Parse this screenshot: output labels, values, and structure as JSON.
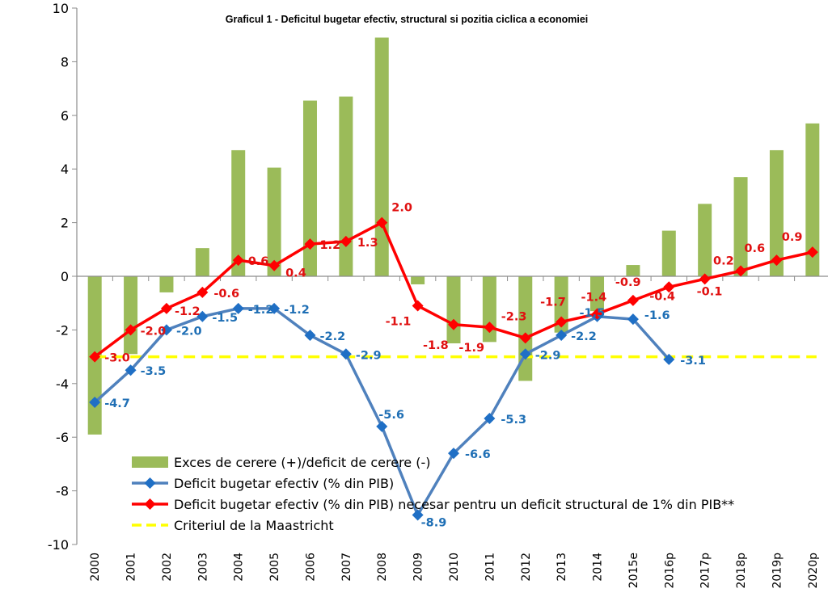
{
  "chart_data": {
    "type": "bar",
    "title": "Graficul 1 - Deficitul bugetar efectiv, structural si pozitia ciclica a economiei",
    "xlabel": "",
    "ylabel": "",
    "ylim": [
      -10,
      10
    ],
    "yticks": [
      10,
      8,
      6,
      4,
      2,
      0,
      -2,
      -4,
      -6,
      -8,
      -10
    ],
    "grid": false,
    "legend_position": "bottom-left",
    "categories": [
      "2000",
      "2001",
      "2002",
      "2003",
      "2004",
      "2005",
      "2006",
      "2007",
      "2008",
      "2009",
      "2010",
      "2011",
      "2012",
      "2013",
      "2014",
      "2015e",
      "2016p",
      "2017p",
      "2018p",
      "2019p",
      "2020p"
    ],
    "series": [
      {
        "name": "Exces de cerere (+)/deficit de cerere (-)",
        "kind": "bar",
        "color": "#9BBB59",
        "values": [
          -5.9,
          -2.9,
          -0.6,
          1.05,
          4.7,
          4.05,
          6.55,
          6.7,
          8.9,
          -0.3,
          -2.5,
          -2.45,
          -3.9,
          -2.1,
          -1.3,
          0.42,
          1.7,
          2.7,
          3.7,
          4.7,
          5.7
        ]
      },
      {
        "name": "Deficit bugetar efectiv (% din PIB)",
        "kind": "line",
        "marker": "diamond",
        "color": "#4F81BD",
        "marker_color": "#1F6FC5",
        "label_color": "#1F6FB5",
        "values": [
          -4.7,
          -3.5,
          -2.0,
          -1.5,
          -1.2,
          -1.2,
          -2.2,
          -2.9,
          -5.6,
          -8.9,
          -6.6,
          -5.3,
          -2.9,
          -2.2,
          -1.5,
          -1.6,
          -3.1,
          null,
          null,
          null,
          null
        ],
        "labels": [
          "-4.7",
          "-3.5",
          "-2.0",
          "-1.5",
          "-1.2",
          "-1.2",
          "-2.2",
          "-2.9",
          "-5.6",
          "-8.9",
          "-6.6",
          "-5.3",
          "-2.9",
          "-2.2",
          "-1.5",
          "-1.6",
          "-3.1",
          null,
          null,
          null,
          null
        ]
      },
      {
        "name": "Deficit bugetar efectiv (% din PIB) necesar pentru un deficit structural de 1% din PIB**",
        "kind": "line",
        "marker": "diamond",
        "color": "#FF0000",
        "label_color": "#E01010",
        "values": [
          -3.0,
          -2.0,
          -1.2,
          -0.6,
          0.6,
          0.4,
          1.2,
          1.3,
          2.0,
          -1.1,
          -1.8,
          -1.9,
          -2.3,
          -1.7,
          -1.4,
          -0.9,
          -0.4,
          -0.1,
          0.2,
          0.6,
          0.9
        ],
        "labels": [
          "-3.0",
          "-2.0",
          "-1.2",
          "-0.6",
          "0.6",
          "0.4",
          "1.2",
          "1.3",
          "2.0",
          "-1.1",
          "-1.8",
          "-1.9",
          "-2.3",
          "-1.7",
          "-1.4",
          "-0.9",
          "-0.4",
          "-0.1",
          "0.2",
          "0.6",
          "0.9"
        ]
      },
      {
        "name": "Criteriul de la Maastricht",
        "kind": "line",
        "style": "dashed",
        "color": "#FFFF00",
        "values": [
          -3,
          -3,
          -3,
          -3,
          -3,
          -3,
          -3,
          -3,
          -3,
          -3,
          -3,
          -3,
          -3,
          -3,
          -3,
          -3,
          -3,
          -3,
          -3,
          -3,
          -3
        ]
      }
    ]
  }
}
